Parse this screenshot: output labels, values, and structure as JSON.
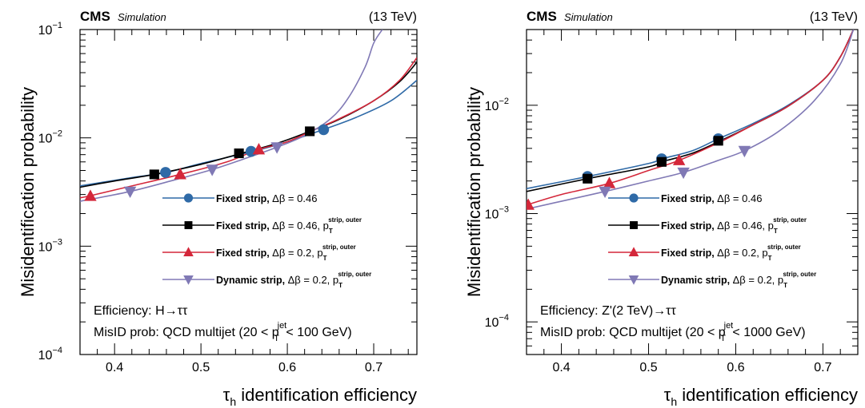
{
  "chart_data": [
    {
      "type": "line",
      "header_left": "CMS",
      "header_sub": "Simulation",
      "header_right": "(13 TeV)",
      "xlabel": "τh identification efficiency",
      "xlabel_main": "τ",
      "xlabel_sub": "h",
      "xlabel_rest": " identification efficiency",
      "ylabel": "Misidentification probability",
      "xlim": [
        0.36,
        0.75
      ],
      "ylim": [
        0.0001,
        0.1
      ],
      "yscale": "log",
      "xticks": [
        "0.4",
        "0.5",
        "0.6",
        "0.7"
      ],
      "yticks": [
        {
          "base": "10",
          "exp": "−1",
          "value": 0.1
        },
        {
          "base": "10",
          "exp": "−2",
          "value": 0.01
        },
        {
          "base": "10",
          "exp": "−3",
          "value": 0.001
        },
        {
          "base": "10",
          "exp": "−4",
          "value": 0.0001
        }
      ],
      "legend_position": "center-right",
      "annotation_1": "Efficiency: H→ττ",
      "annotation_2_pre": "MisID prob: QCD multijet (20 < p",
      "annotation_2_sup": "jet",
      "annotation_2_sub": "T",
      "annotation_2_post": " < 100 GeV)",
      "series": [
        {
          "name": "Fixed strip, Δβ = 0.46",
          "label_main": "Fixed strip, ",
          "label_rest": "Δβ = 0.46",
          "label_sup": "",
          "color": "#2f6aa7",
          "marker": "circle",
          "curve": [
            [
              0.36,
              0.0036
            ],
            [
              0.42,
              0.0043
            ],
            [
              0.46,
              0.0048
            ],
            [
              0.5,
              0.0058
            ],
            [
              0.56,
              0.0075
            ],
            [
              0.6,
              0.0092
            ],
            [
              0.64,
              0.0118
            ],
            [
              0.68,
              0.0155
            ],
            [
              0.72,
              0.022
            ],
            [
              0.75,
              0.034
            ]
          ],
          "points": [
            [
              0.459,
              0.0048
            ],
            [
              0.558,
              0.0075
            ],
            [
              0.642,
              0.0119
            ]
          ]
        },
        {
          "name": "Fixed strip, Δβ = 0.46, pT strip, outer",
          "label_main": "Fixed strip, ",
          "label_rest": "Δβ = 0.46, p",
          "label_sup": "strip, outer",
          "label_sub": "T",
          "color": "#000000",
          "marker": "square",
          "curve": [
            [
              0.36,
              0.0035
            ],
            [
              0.4,
              0.004
            ],
            [
              0.446,
              0.0046
            ],
            [
              0.5,
              0.0057
            ],
            [
              0.544,
              0.0071
            ],
            [
              0.59,
              0.009
            ],
            [
              0.625,
              0.0114
            ],
            [
              0.66,
              0.0148
            ],
            [
              0.7,
              0.022
            ],
            [
              0.73,
              0.033
            ],
            [
              0.75,
              0.05
            ]
          ],
          "points": [
            [
              0.446,
              0.0046
            ],
            [
              0.544,
              0.0072
            ],
            [
              0.626,
              0.0115
            ]
          ]
        },
        {
          "name": "Fixed strip, Δβ = 0.2, pT strip, outer",
          "label_main": "Fixed strip, ",
          "label_rest": "Δβ = 0.2, p",
          "label_sup": "strip, outer",
          "label_sub": "T",
          "color": "#d4273a",
          "marker": "triangle-up",
          "curve": [
            [
              0.36,
              0.0028
            ],
            [
              0.37,
              0.0029
            ],
            [
              0.42,
              0.0036
            ],
            [
              0.476,
              0.0046
            ],
            [
              0.53,
              0.006
            ],
            [
              0.566,
              0.0078
            ],
            [
              0.6,
              0.0092
            ],
            [
              0.63,
              0.0118
            ],
            [
              0.66,
              0.015
            ],
            [
              0.7,
              0.022
            ],
            [
              0.73,
              0.034
            ],
            [
              0.75,
              0.055
            ]
          ],
          "points": [
            [
              0.372,
              0.0029
            ],
            [
              0.476,
              0.0046
            ],
            [
              0.567,
              0.0078
            ]
          ]
        },
        {
          "name": "Dynamic strip, Δβ = 0.2, pT strip, outer",
          "label_main": "Dynamic strip, ",
          "label_rest": "Δβ = 0.2, p",
          "label_sup": "strip, outer",
          "label_sub": "T",
          "color": "#8079b5",
          "marker": "triangle-down",
          "curve": [
            [
              0.36,
              0.0026
            ],
            [
              0.418,
              0.0032
            ],
            [
              0.47,
              0.0041
            ],
            [
              0.513,
              0.0051
            ],
            [
              0.55,
              0.0064
            ],
            [
              0.588,
              0.0082
            ],
            [
              0.62,
              0.0105
            ],
            [
              0.65,
              0.015
            ],
            [
              0.67,
              0.023
            ],
            [
              0.69,
              0.045
            ],
            [
              0.7,
              0.075
            ],
            [
              0.71,
              0.1
            ]
          ],
          "points": [
            [
              0.418,
              0.0032
            ],
            [
              0.513,
              0.0051
            ],
            [
              0.588,
              0.0082
            ]
          ]
        }
      ]
    },
    {
      "type": "line",
      "header_left": "CMS",
      "header_sub": "Simulation",
      "header_right": "(13 TeV)",
      "xlabel": "τh identification efficiency",
      "xlabel_main": "τ",
      "xlabel_sub": "h",
      "xlabel_rest": " identification efficiency",
      "ylabel": "Misidentification probability",
      "xlim": [
        0.36,
        0.74
      ],
      "ylim": [
        5e-05,
        0.05
      ],
      "yscale": "log",
      "xticks": [
        "0.4",
        "0.5",
        "0.6",
        "0.7"
      ],
      "yticks": [
        {
          "base": "10",
          "exp": "−2",
          "value": 0.01
        },
        {
          "base": "10",
          "exp": "−3",
          "value": 0.001
        },
        {
          "base": "10",
          "exp": "−4",
          "value": 0.0001
        }
      ],
      "legend_position": "center-right",
      "annotation_1": "Efficiency: Z'(2 TeV)→ττ",
      "annotation_2_pre": "MisID prob: QCD multijet (20 < p",
      "annotation_2_sup": "jet",
      "annotation_2_sub": "T",
      "annotation_2_post": " < 1000 GeV)",
      "series": [
        {
          "name": "Fixed strip, Δβ = 0.46",
          "label_main": "Fixed strip, ",
          "label_rest": "Δβ = 0.46",
          "label_sup": "",
          "color": "#2f6aa7",
          "marker": "circle",
          "curve": [
            [
              0.36,
              0.0017
            ],
            [
              0.43,
              0.0022
            ],
            [
              0.5,
              0.0029
            ],
            [
              0.515,
              0.0032
            ],
            [
              0.55,
              0.0038
            ],
            [
              0.58,
              0.0049
            ],
            [
              0.62,
              0.0068
            ],
            [
              0.66,
              0.01
            ],
            [
              0.7,
              0.017
            ],
            [
              0.72,
              0.028
            ],
            [
              0.735,
              0.05
            ]
          ],
          "points": [
            [
              0.43,
              0.0022
            ],
            [
              0.515,
              0.0032
            ],
            [
              0.58,
              0.0049
            ]
          ]
        },
        {
          "name": "Fixed strip, Δβ = 0.46, pT strip, outer",
          "label_main": "Fixed strip, ",
          "label_rest": "Δβ = 0.46, p",
          "label_sup": "strip, outer",
          "label_sub": "T",
          "color": "#000000",
          "marker": "square",
          "curve": [
            [
              0.36,
              0.0016
            ],
            [
              0.43,
              0.0021
            ],
            [
              0.5,
              0.0027
            ],
            [
              0.515,
              0.003
            ],
            [
              0.55,
              0.0036
            ],
            [
              0.58,
              0.0046
            ],
            [
              0.62,
              0.0066
            ],
            [
              0.66,
              0.0098
            ],
            [
              0.7,
              0.017
            ],
            [
              0.72,
              0.028
            ],
            [
              0.735,
              0.05
            ]
          ],
          "points": [
            [
              0.43,
              0.0021
            ],
            [
              0.515,
              0.003
            ],
            [
              0.58,
              0.0047
            ]
          ]
        },
        {
          "name": "Fixed strip, Δβ = 0.2, pT strip, outer",
          "label_main": "Fixed strip, ",
          "label_rest": "Δβ = 0.2, p",
          "label_sup": "strip, outer",
          "label_sub": "T",
          "color": "#d4273a",
          "marker": "triangle-up",
          "curve": [
            [
              0.36,
              0.0012
            ],
            [
              0.4,
              0.0015
            ],
            [
              0.455,
              0.0019
            ],
            [
              0.5,
              0.0025
            ],
            [
              0.535,
              0.0031
            ],
            [
              0.58,
              0.0045
            ],
            [
              0.62,
              0.0066
            ],
            [
              0.66,
              0.0098
            ],
            [
              0.7,
              0.017
            ],
            [
              0.72,
              0.028
            ],
            [
              0.735,
              0.05
            ]
          ],
          "points": [
            [
              0.362,
              0.0012
            ],
            [
              0.455,
              0.0019
            ],
            [
              0.535,
              0.0031
            ]
          ]
        },
        {
          "name": "Dynamic strip, Δβ = 0.2, pT strip, outer",
          "label_main": "Dynamic strip, ",
          "label_rest": "Δβ = 0.2, p",
          "label_sup": "strip, outer",
          "label_sub": "T",
          "color": "#8079b5",
          "marker": "triangle-down",
          "curve": [
            [
              0.36,
              0.0011
            ],
            [
              0.4,
              0.0013
            ],
            [
              0.45,
              0.0016
            ],
            [
              0.5,
              0.002
            ],
            [
              0.54,
              0.0024
            ],
            [
              0.58,
              0.0031
            ],
            [
              0.61,
              0.0038
            ],
            [
              0.65,
              0.0058
            ],
            [
              0.69,
              0.011
            ],
            [
              0.72,
              0.024
            ],
            [
              0.735,
              0.05
            ]
          ],
          "points": [
            [
              0.45,
              0.0016
            ],
            [
              0.54,
              0.0024
            ],
            [
              0.61,
              0.0038
            ]
          ]
        }
      ]
    }
  ]
}
